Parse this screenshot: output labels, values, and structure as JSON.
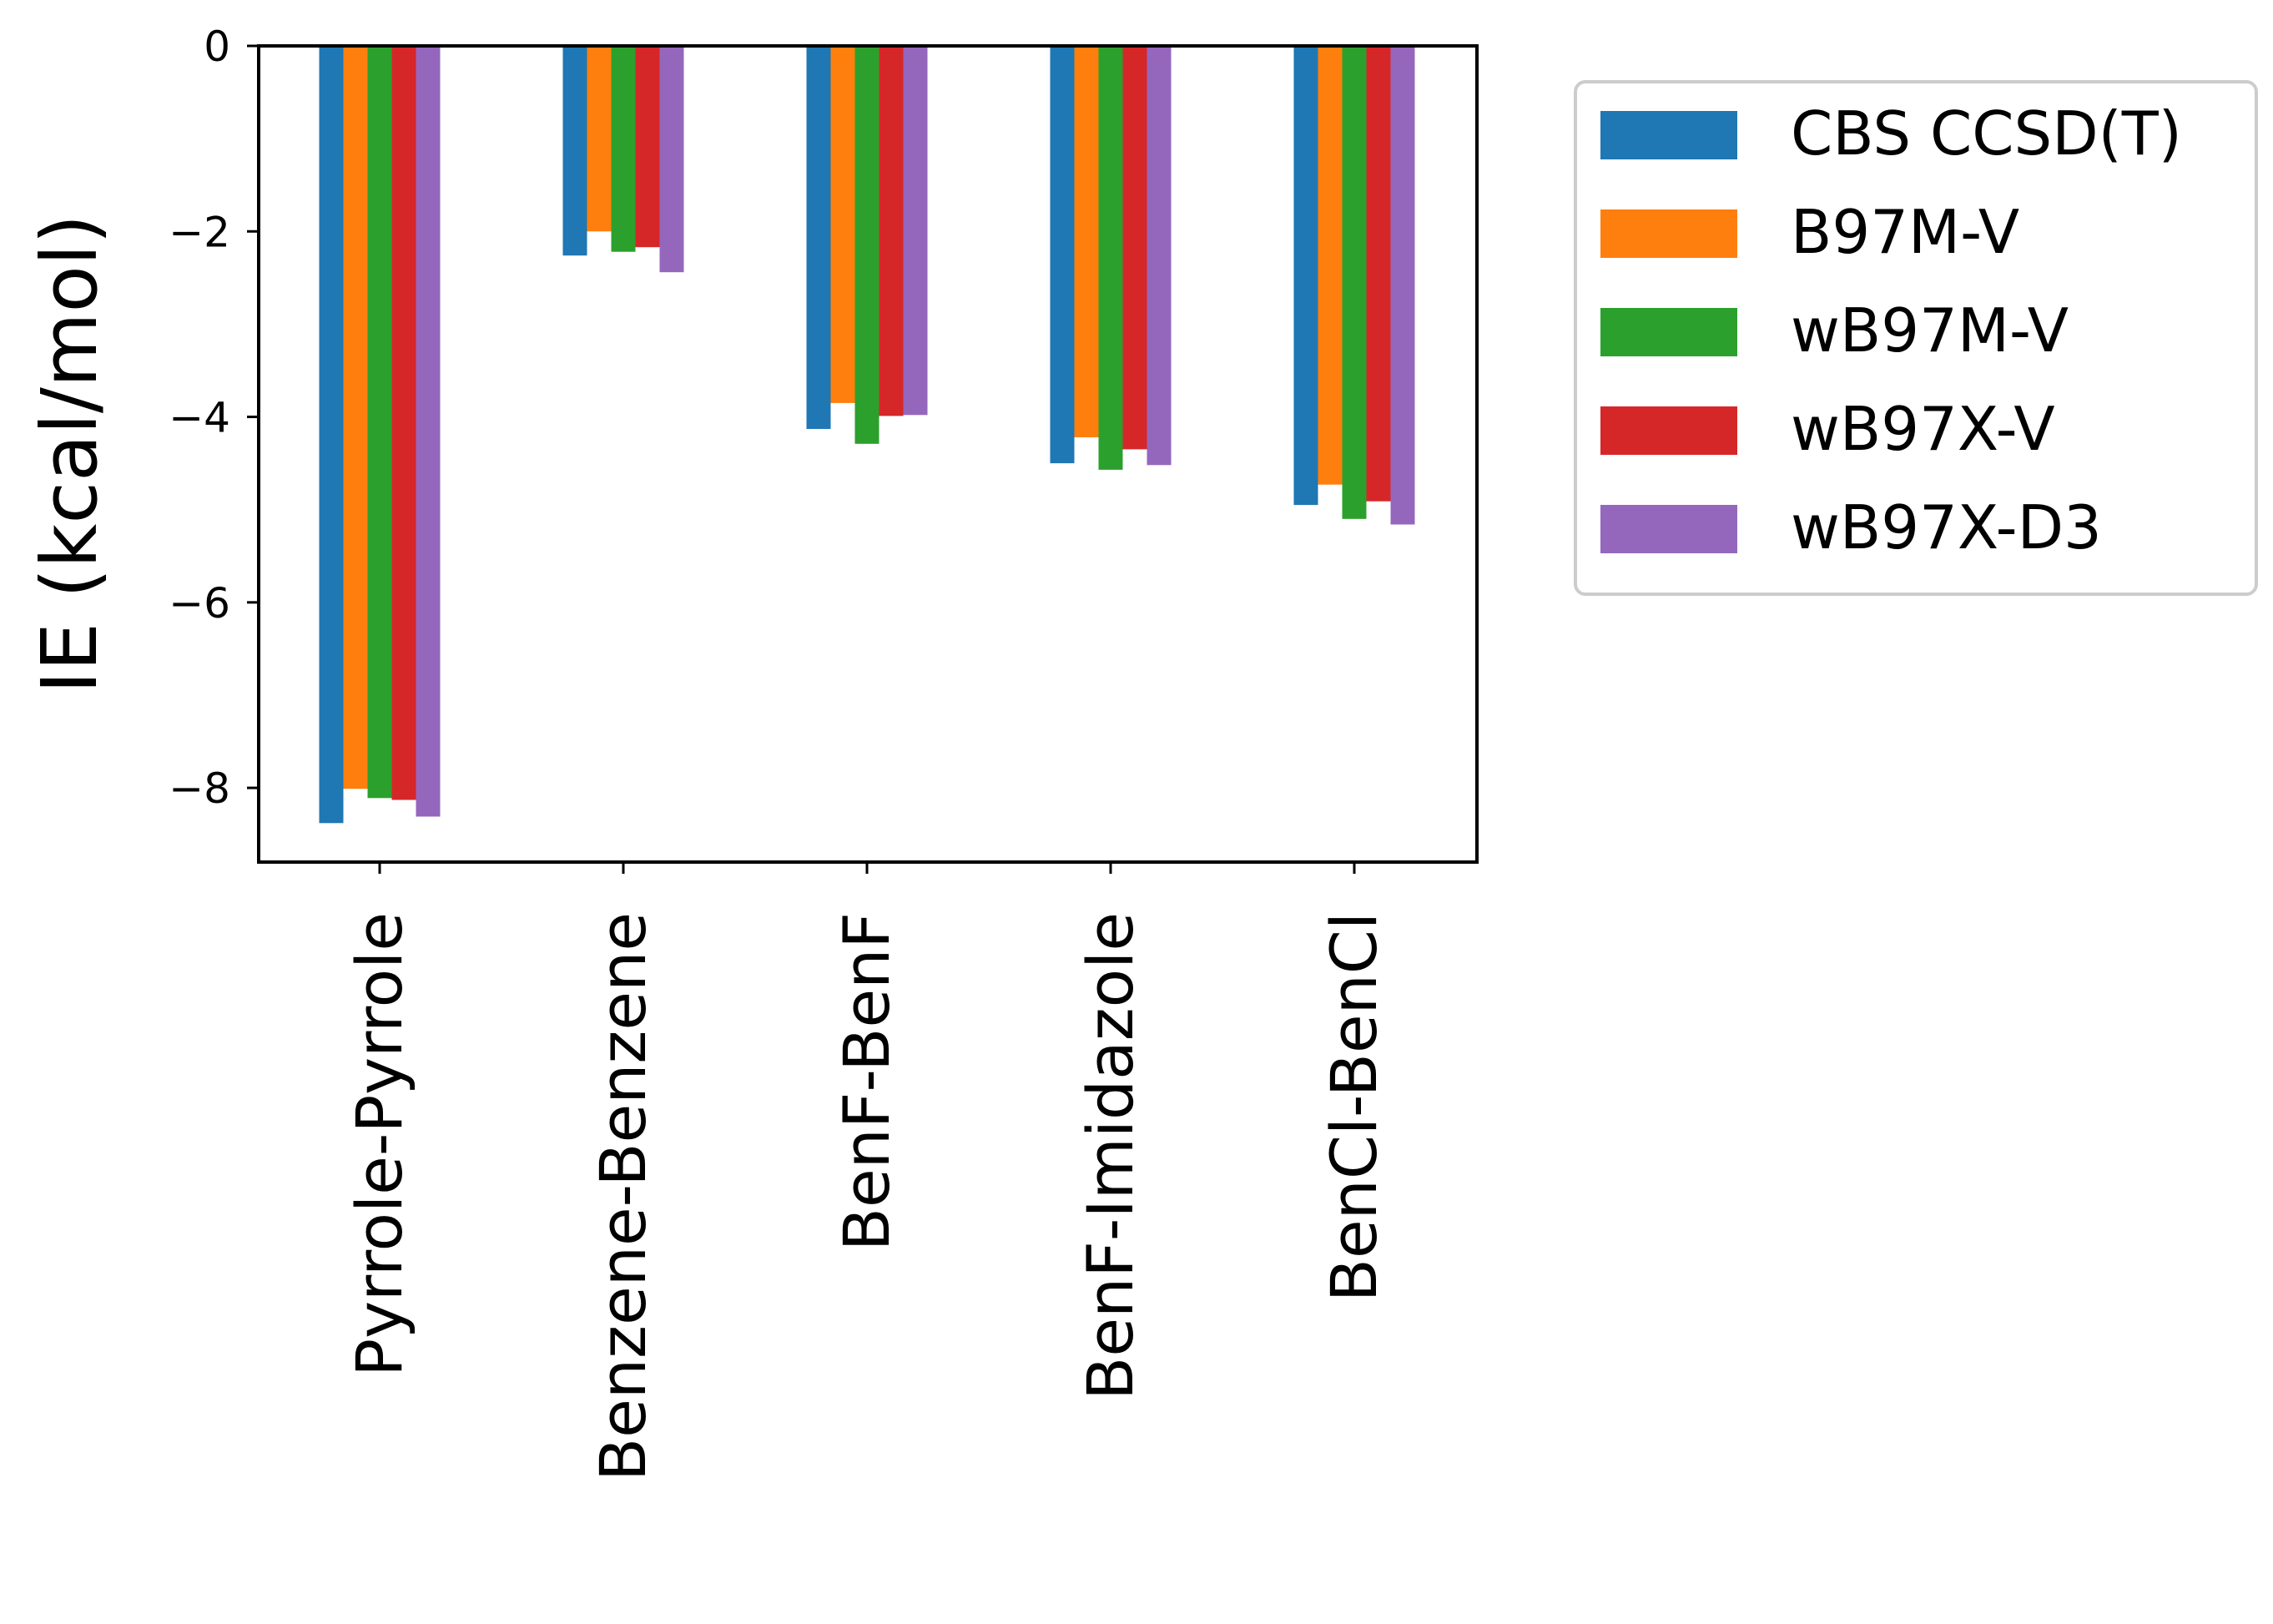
{
  "chart_data": {
    "type": "bar",
    "title": "",
    "xlabel": "",
    "ylabel": "IE (kcal/mol)",
    "ylim": [
      -8.8,
      0
    ],
    "yticks": [
      0,
      -2,
      -4,
      -6,
      -8
    ],
    "ytick_labels": [
      "0",
      "−2",
      "−4",
      "−6",
      "−8"
    ],
    "categories": [
      "Pyrrole-Pyrrole",
      "Benzene-Benzene",
      "BenF-BenF",
      "BenF-Imidazole",
      "BenCl-BenCl"
    ],
    "series": [
      {
        "name": "CBS CCSD(T)",
        "color": "#1f77b4",
        "values": [
          -8.38,
          -2.26,
          -4.13,
          -4.5,
          -4.95
        ]
      },
      {
        "name": "B97M-V",
        "color": "#ff7f0e",
        "values": [
          -8.01,
          -2.0,
          -3.85,
          -4.22,
          -4.73
        ]
      },
      {
        "name": "wB97M-V",
        "color": "#2ca02c",
        "values": [
          -8.11,
          -2.22,
          -4.29,
          -4.57,
          -5.1
        ]
      },
      {
        "name": "wB97X-V",
        "color": "#d62728",
        "values": [
          -8.13,
          -2.17,
          -3.99,
          -4.35,
          -4.91
        ]
      },
      {
        "name": "wB97X-D3",
        "color": "#9467bd",
        "values": [
          -8.31,
          -2.44,
          -3.98,
          -4.52,
          -5.16
        ]
      }
    ],
    "legend_position": "upper right, outside axes",
    "grid": false
  }
}
